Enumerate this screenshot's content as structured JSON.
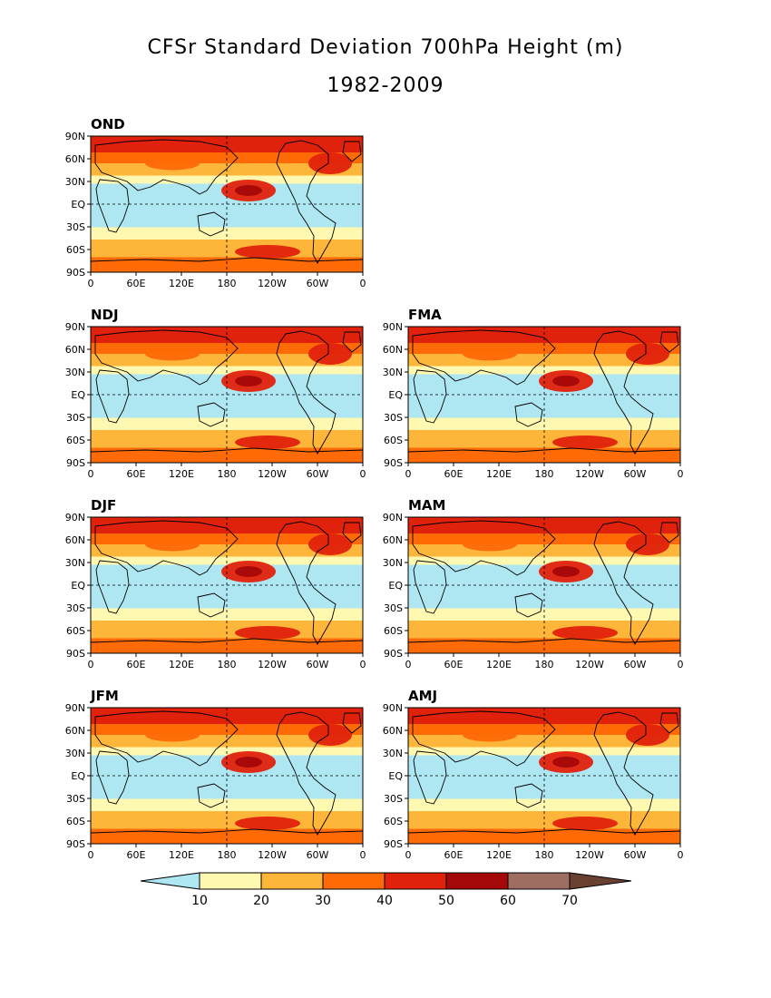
{
  "title": "CFSr Standard Deviation 700hPa Height (m)",
  "subtitle": "1982-2009",
  "lat_labels": [
    "90N",
    "60N",
    "30N",
    "EQ",
    "30S",
    "60S",
    "90S"
  ],
  "lon_labels": [
    "0",
    "60E",
    "120E",
    "180",
    "120W",
    "60W",
    "0"
  ],
  "colorbar": {
    "tick_labels": [
      "10",
      "20",
      "30",
      "40",
      "50",
      "60",
      "70"
    ],
    "colors": [
      "#aee6f2",
      "#fef8b0",
      "#fdb53a",
      "#fd6a06",
      "#e0220c",
      "#a50808",
      "#9e6e62",
      "#6a4030"
    ]
  },
  "panels": [
    {
      "label": "OND",
      "slot": 0
    },
    {
      "label": "NDJ",
      "slot": 2
    },
    {
      "label": "FMA",
      "slot": 3
    },
    {
      "label": "DJF",
      "slot": 4
    },
    {
      "label": "MAM",
      "slot": 5
    },
    {
      "label": "JFM",
      "slot": 6
    },
    {
      "label": "AMJ",
      "slot": 7
    }
  ]
}
